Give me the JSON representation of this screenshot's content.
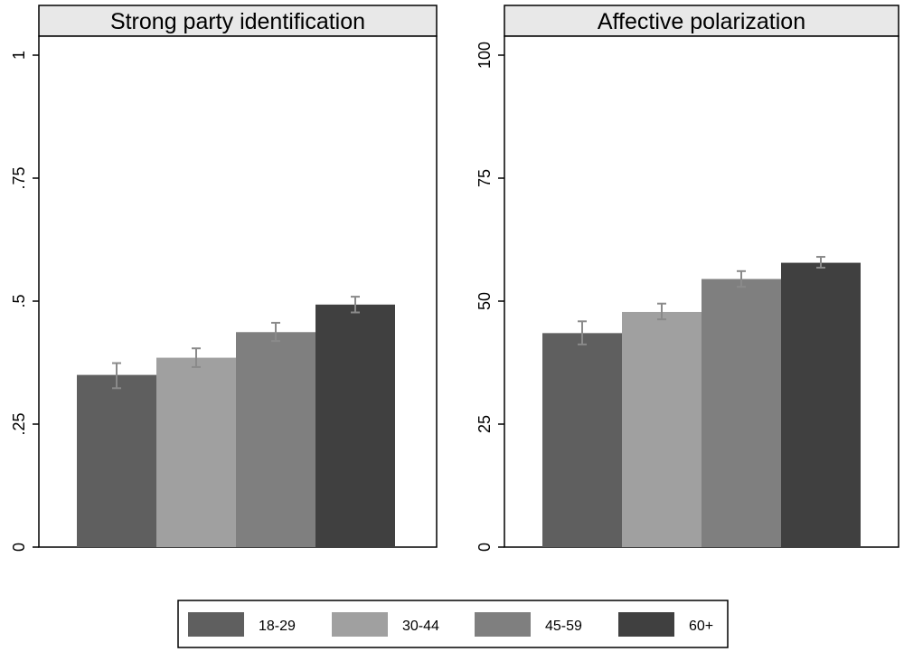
{
  "chart_data": [
    {
      "type": "bar",
      "title": "Strong party identification",
      "xlabel": "",
      "ylabel": "",
      "ylim": [
        0,
        1
      ],
      "yticks": [
        0,
        0.25,
        0.5,
        0.75,
        1
      ],
      "ytick_labels": [
        "0",
        ".25",
        ".5",
        ".75",
        "1"
      ],
      "categories": [
        "18-29",
        "30-44",
        "45-59",
        "60+"
      ],
      "values": [
        0.35,
        0.385,
        0.437,
        0.493
      ],
      "error_low": [
        0.323,
        0.366,
        0.419,
        0.477
      ],
      "error_high": [
        0.374,
        0.404,
        0.456,
        0.509
      ]
    },
    {
      "type": "bar",
      "title": "Affective polarization",
      "xlabel": "",
      "ylabel": "",
      "ylim": [
        0,
        100
      ],
      "yticks": [
        0,
        25,
        50,
        75,
        100
      ],
      "ytick_labels": [
        "0",
        "25",
        "50",
        "75",
        "100"
      ],
      "categories": [
        "18-29",
        "30-44",
        "45-59",
        "60+"
      ],
      "values": [
        43.5,
        47.8,
        54.5,
        57.8
      ],
      "error_low": [
        41.2,
        46.3,
        52.9,
        56.8
      ],
      "error_high": [
        45.9,
        49.5,
        56.1,
        59
      ]
    }
  ],
  "legend": {
    "position": "bottom",
    "items": [
      {
        "label": "18-29",
        "color": "#5f5f5f"
      },
      {
        "label": "30-44",
        "color": "#a0a0a0"
      },
      {
        "label": "45-59",
        "color": "#7f7f7f"
      },
      {
        "label": "60+",
        "color": "#404040"
      }
    ]
  },
  "colors": {
    "bars": [
      "#5f5f5f",
      "#a0a0a0",
      "#7f7f7f",
      "#404040"
    ],
    "error_bar": "#8a8a8a",
    "panel_header": "#e8e8e8"
  }
}
